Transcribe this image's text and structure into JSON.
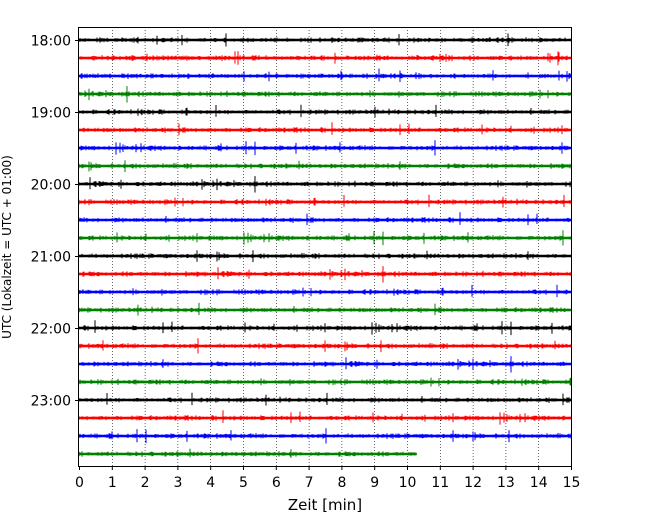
{
  "chart_data": {
    "type": "line",
    "xlabel": "Zeit  [min]",
    "ylabel": "UTC (Lokalzeit = UTC + 01:00)",
    "xlim": [
      0,
      15
    ],
    "x_ticks": [
      "0",
      "1",
      "2",
      "3",
      "4",
      "5",
      "6",
      "7",
      "8",
      "9",
      "10",
      "11",
      "12",
      "13",
      "14",
      "15"
    ],
    "y_ticks": [
      "18:00",
      "19:00",
      "20:00",
      "21:00",
      "22:00",
      "23:00"
    ],
    "grid": "vertical dotted at each minute",
    "series": [
      {
        "start": "18:00",
        "color": "#000000",
        "end_min": 15
      },
      {
        "start": "18:15",
        "color": "#ff0000",
        "end_min": 15
      },
      {
        "start": "18:30",
        "color": "#0000ff",
        "end_min": 15
      },
      {
        "start": "18:45",
        "color": "#008000",
        "end_min": 15
      },
      {
        "start": "19:00",
        "color": "#000000",
        "end_min": 15
      },
      {
        "start": "19:15",
        "color": "#ff0000",
        "end_min": 15
      },
      {
        "start": "19:30",
        "color": "#0000ff",
        "end_min": 15
      },
      {
        "start": "19:45",
        "color": "#008000",
        "end_min": 15
      },
      {
        "start": "20:00",
        "color": "#000000",
        "end_min": 15
      },
      {
        "start": "20:15",
        "color": "#ff0000",
        "end_min": 15
      },
      {
        "start": "20:30",
        "color": "#0000ff",
        "end_min": 15
      },
      {
        "start": "20:45",
        "color": "#008000",
        "end_min": 15
      },
      {
        "start": "21:00",
        "color": "#000000",
        "end_min": 15
      },
      {
        "start": "21:15",
        "color": "#ff0000",
        "end_min": 15
      },
      {
        "start": "21:30",
        "color": "#0000ff",
        "end_min": 15
      },
      {
        "start": "21:45",
        "color": "#008000",
        "end_min": 15
      },
      {
        "start": "22:00",
        "color": "#000000",
        "end_min": 15
      },
      {
        "start": "22:15",
        "color": "#ff0000",
        "end_min": 15
      },
      {
        "start": "22:30",
        "color": "#0000ff",
        "end_min": 15
      },
      {
        "start": "22:45",
        "color": "#008000",
        "end_min": 15
      },
      {
        "start": "23:00",
        "color": "#000000",
        "end_min": 15
      },
      {
        "start": "23:15",
        "color": "#ff0000",
        "end_min": 15
      },
      {
        "start": "23:30",
        "color": "#0000ff",
        "end_min": 15
      },
      {
        "start": "23:45",
        "color": "#008000",
        "end_min": 10.3
      }
    ]
  }
}
